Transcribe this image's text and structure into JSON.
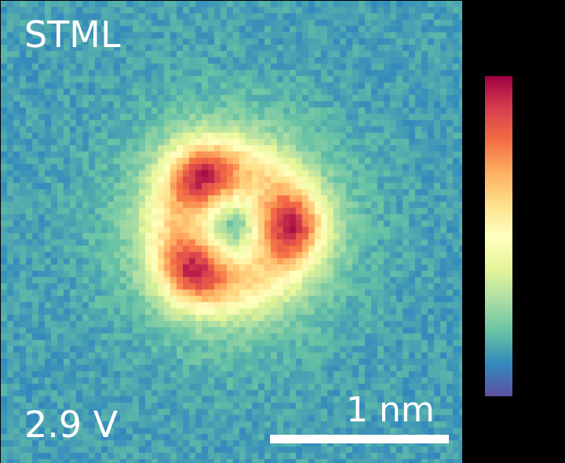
{
  "figure": {
    "title": "STML",
    "voltage": "2.9 V",
    "scale_bar_label": "1 nm"
  },
  "colormap": [
    "#5e4fa2",
    "#3288bd",
    "#66c2a5",
    "#abdda4",
    "#e6f598",
    "#ffffbf",
    "#fee08b",
    "#fdae61",
    "#f46d43",
    "#d53e4f",
    "#9e0142"
  ]
}
